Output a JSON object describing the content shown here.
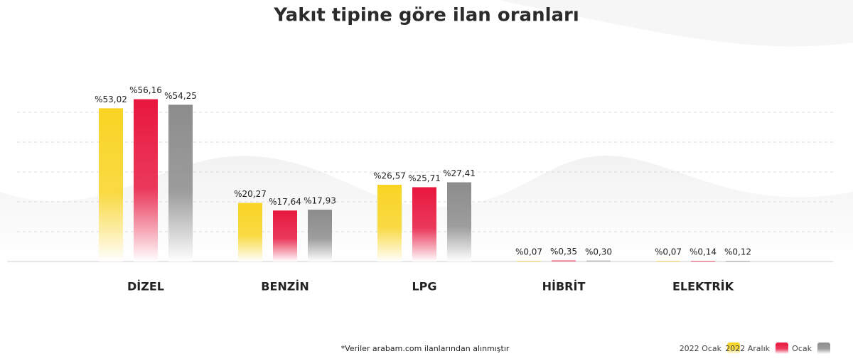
{
  "chart_data": {
    "type": "bar",
    "title": "Yakıt tipine göre ilan oranları",
    "categories": [
      "DİZEL",
      "BENZİN",
      "LPG",
      "HİBRİT",
      "ELEKTRİK"
    ],
    "series": [
      {
        "name": "2022 Ocak",
        "color": "#f9d423",
        "values": [
          53.02,
          20.27,
          26.57,
          0.07,
          0.07
        ],
        "value_labels": [
          "%53,02",
          "%20,27",
          "%26,57",
          "%0,07",
          "%0,07"
        ]
      },
      {
        "name": "2022 Aralık",
        "color": "#e8173f",
        "values": [
          56.16,
          17.64,
          25.71,
          0.35,
          0.14
        ],
        "value_labels": [
          "%56,16",
          "%17,64",
          "%25,71",
          "%0,35",
          "%0,14"
        ]
      },
      {
        "name": "Ocak",
        "color": "#8c8c8c",
        "values": [
          54.25,
          17.93,
          27.41,
          0.3,
          0.12
        ],
        "value_labels": [
          "%54,25",
          "%17,93",
          "%27,41",
          "%0,30",
          "%0,12"
        ]
      }
    ],
    "ylim": [
      0,
      60
    ],
    "footnote": "*Veriler arabam.com ilanlarından alınmıştır"
  }
}
